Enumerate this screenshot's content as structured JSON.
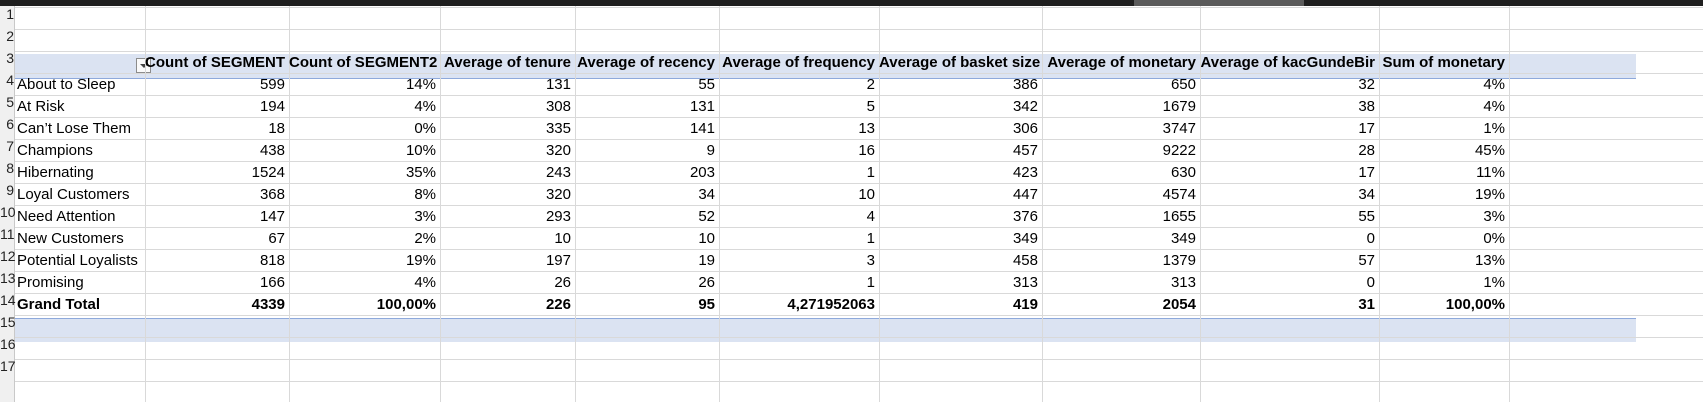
{
  "row_numbers": [
    "1",
    "2",
    "3",
    "4",
    "5",
    "6",
    "7",
    "8",
    "9",
    "10",
    "11",
    "12",
    "13",
    "14",
    "15",
    "16",
    "17"
  ],
  "pivot": {
    "headers": [
      "Count of SEGMENT",
      "Count of SEGMENT2",
      "Average of tenure",
      "Average of recency",
      "Average of frequency",
      "Average of basket size",
      "Average of monetary",
      "Average of kacGundeBir",
      "Sum of monetary"
    ],
    "rows": [
      {
        "label": "About to Sleep",
        "values": [
          "599",
          "14%",
          "131",
          "55",
          "2",
          "386",
          "650",
          "32",
          "4%"
        ]
      },
      {
        "label": "At Risk",
        "values": [
          "194",
          "4%",
          "308",
          "131",
          "5",
          "342",
          "1679",
          "38",
          "4%"
        ]
      },
      {
        "label": "Can’t Lose Them",
        "values": [
          "18",
          "0%",
          "335",
          "141",
          "13",
          "306",
          "3747",
          "17",
          "1%"
        ]
      },
      {
        "label": "Champions",
        "values": [
          "438",
          "10%",
          "320",
          "9",
          "16",
          "457",
          "9222",
          "28",
          "45%"
        ]
      },
      {
        "label": "Hibernating",
        "values": [
          "1524",
          "35%",
          "243",
          "203",
          "1",
          "423",
          "630",
          "17",
          "11%"
        ]
      },
      {
        "label": "Loyal Customers",
        "values": [
          "368",
          "8%",
          "320",
          "34",
          "10",
          "447",
          "4574",
          "34",
          "19%"
        ]
      },
      {
        "label": "Need Attention",
        "values": [
          "147",
          "3%",
          "293",
          "52",
          "4",
          "376",
          "1655",
          "55",
          "3%"
        ]
      },
      {
        "label": "New Customers",
        "values": [
          "67",
          "2%",
          "10",
          "10",
          "1",
          "349",
          "349",
          "0",
          "0%"
        ]
      },
      {
        "label": "Potential Loyalists",
        "values": [
          "818",
          "19%",
          "197",
          "19",
          "3",
          "458",
          "1379",
          "57",
          "13%"
        ]
      },
      {
        "label": "Promising",
        "values": [
          "166",
          "4%",
          "26",
          "26",
          "1",
          "313",
          "313",
          "0",
          "1%"
        ]
      }
    ],
    "total": {
      "label": "Grand Total",
      "values": [
        "4339",
        "100,00%",
        "226",
        "95",
        "4,271952063",
        "419",
        "2054",
        "31",
        "100,00%"
      ]
    }
  }
}
